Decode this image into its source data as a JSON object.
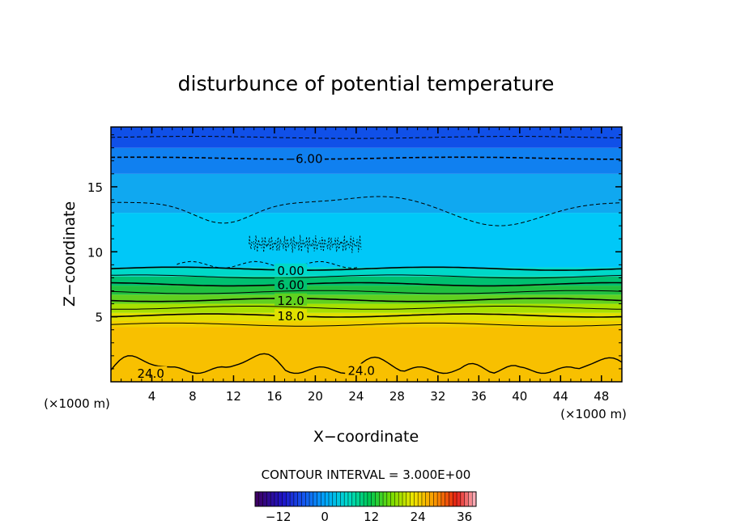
{
  "chart_data": {
    "type": "heatmap",
    "title": "disturbunce of potential temperature",
    "xlabel": "X−coordinate",
    "ylabel": "Z−coordinate",
    "x_unit_left": "(×1000 m)",
    "x_unit_right": "(×1000 m)",
    "xlim": [
      0,
      50
    ],
    "ylim": [
      0,
      19.6
    ],
    "x_ticks": [
      4,
      8,
      12,
      16,
      20,
      24,
      28,
      32,
      36,
      40,
      44,
      48
    ],
    "y_ticks": [
      5,
      10,
      15
    ],
    "contour_interval_text": "CONTOUR INTERVAL = 3.000E+00",
    "contour_interval": 3.0,
    "color_levels": [
      {
        "z_bottom": 0.0,
        "z_top": 4.2,
        "color": "#f8c000",
        "value_range": [
          21,
          24
        ]
      },
      {
        "z_bottom": 4.2,
        "z_top": 4.7,
        "color": "#f0d000",
        "value_range": [
          18,
          21
        ]
      },
      {
        "z_bottom": 4.7,
        "z_top": 5.3,
        "color": "#e0e000",
        "value_range": [
          15,
          18
        ]
      },
      {
        "z_bottom": 5.3,
        "z_top": 6.0,
        "color": "#a8e000",
        "value_range": [
          12,
          15
        ]
      },
      {
        "z_bottom": 6.0,
        "z_top": 6.7,
        "color": "#60d020",
        "value_range": [
          9,
          12
        ]
      },
      {
        "z_bottom": 6.7,
        "z_top": 7.4,
        "color": "#20c040",
        "value_range": [
          6,
          9
        ]
      },
      {
        "z_bottom": 7.4,
        "z_top": 8.1,
        "color": "#00c070",
        "value_range": [
          3,
          6
        ]
      },
      {
        "z_bottom": 8.1,
        "z_top": 8.8,
        "color": "#00d8c8",
        "value_range": [
          0,
          3
        ]
      },
      {
        "z_bottom": 8.8,
        "z_top": 13.0,
        "color": "#00c8f8",
        "value_range": [
          -3,
          0
        ]
      },
      {
        "z_bottom": 13.0,
        "z_top": 16.0,
        "color": "#10a8f0",
        "value_range": [
          -6,
          -3
        ]
      },
      {
        "z_bottom": 16.0,
        "z_top": 18.0,
        "color": "#1080f0",
        "value_range": [
          -9,
          -6
        ]
      },
      {
        "z_bottom": 18.0,
        "z_top": 19.6,
        "color": "#1050e8",
        "value_range": [
          -12,
          -9
        ]
      }
    ],
    "contour_labels": [
      {
        "text": "−6.00",
        "value": -6,
        "x": 18.9,
        "z": 17.2
      },
      {
        "text": "0.00",
        "value": 0,
        "x": 17.6,
        "z": 8.6
      },
      {
        "text": "6.00",
        "value": 6,
        "x": 17.6,
        "z": 7.5
      },
      {
        "text": "12.0",
        "value": 12,
        "x": 17.6,
        "z": 6.3
      },
      {
        "text": "18.0",
        "value": 18,
        "x": 17.6,
        "z": 5.1
      },
      {
        "text": "24.0",
        "value": 24,
        "x": 3.9,
        "z": 0.7
      },
      {
        "text": "24.0",
        "value": 24,
        "x": 24.5,
        "z": 0.9
      }
    ],
    "solid_contours_z": [
      8.7,
      8.1,
      7.5,
      6.9,
      6.3,
      5.7,
      5.1,
      4.4
    ],
    "dashed_contours_z": [
      18.8,
      17.2
    ],
    "colorbar": {
      "min": -18,
      "max": 39,
      "tick_values": [
        -12,
        0,
        12,
        24,
        36
      ],
      "tick_labels": [
        "−12",
        "0",
        "12",
        "24",
        "36"
      ],
      "n_bins": 57
    }
  }
}
